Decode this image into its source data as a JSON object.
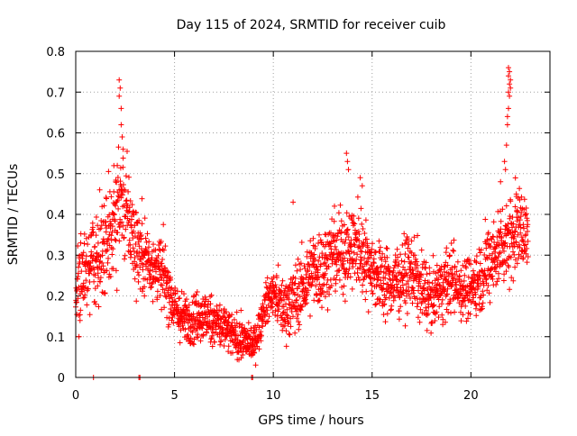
{
  "chart_data": {
    "type": "scatter",
    "title": "Day 115 of 2024, SRMTID for receiver cuib",
    "xlabel": "GPS time / hours",
    "ylabel": "SRMTID / TECUs",
    "xlim": [
      0,
      24
    ],
    "ylim": [
      0,
      0.8
    ],
    "xticks": [
      0,
      5,
      10,
      15,
      20
    ],
    "yticks": [
      0,
      0.1,
      0.2,
      0.3,
      0.4,
      0.5,
      0.6,
      0.7,
      0.8
    ],
    "xtick_labels": [
      "0",
      "5",
      "10",
      "15",
      "20"
    ],
    "ytick_labels": [
      "0",
      "0.1",
      "0.2",
      "0.3",
      "0.4",
      "0.5",
      "0.6",
      "0.7",
      "0.8"
    ],
    "grid": true,
    "marker": "+",
    "marker_color": "#ff0000",
    "trend": {
      "x": [
        0,
        0.5,
        1.0,
        1.5,
        2.0,
        2.3,
        2.6,
        3.0,
        3.5,
        4.0,
        4.5,
        5.0,
        5.5,
        6.0,
        6.5,
        7.0,
        7.5,
        8.0,
        8.5,
        9.0,
        9.3,
        9.6,
        10.0,
        10.5,
        11.0,
        11.5,
        12.0,
        12.5,
        13.0,
        13.5,
        14.0,
        14.5,
        15.0,
        15.5,
        16.0,
        16.5,
        17.0,
        17.5,
        18.0,
        18.5,
        19.0,
        19.5,
        20.0,
        20.5,
        21.0,
        21.5,
        22.0,
        22.5,
        22.9
      ],
      "y": [
        0.22,
        0.25,
        0.3,
        0.32,
        0.4,
        0.44,
        0.4,
        0.33,
        0.3,
        0.27,
        0.25,
        0.17,
        0.14,
        0.15,
        0.15,
        0.14,
        0.12,
        0.1,
        0.09,
        0.08,
        0.12,
        0.18,
        0.21,
        0.17,
        0.19,
        0.22,
        0.26,
        0.27,
        0.3,
        0.31,
        0.32,
        0.31,
        0.27,
        0.24,
        0.23,
        0.25,
        0.26,
        0.22,
        0.19,
        0.22,
        0.24,
        0.22,
        0.22,
        0.25,
        0.29,
        0.32,
        0.35,
        0.37,
        0.34
      ],
      "spread": [
        0.08,
        0.09,
        0.1,
        0.1,
        0.11,
        0.12,
        0.1,
        0.09,
        0.08,
        0.07,
        0.07,
        0.05,
        0.05,
        0.05,
        0.05,
        0.05,
        0.05,
        0.04,
        0.04,
        0.03,
        0.04,
        0.04,
        0.04,
        0.06,
        0.07,
        0.07,
        0.08,
        0.08,
        0.08,
        0.09,
        0.09,
        0.08,
        0.07,
        0.07,
        0.07,
        0.07,
        0.07,
        0.07,
        0.06,
        0.06,
        0.07,
        0.06,
        0.06,
        0.07,
        0.08,
        0.08,
        0.09,
        0.08,
        0.07
      ]
    },
    "peaks": [
      {
        "x": 2.2,
        "y": 0.73
      },
      {
        "x": 2.25,
        "y": 0.71
      },
      {
        "x": 2.2,
        "y": 0.69
      },
      {
        "x": 2.3,
        "y": 0.66
      },
      {
        "x": 2.3,
        "y": 0.62
      },
      {
        "x": 2.35,
        "y": 0.59
      },
      {
        "x": 2.4,
        "y": 0.56
      },
      {
        "x": 13.7,
        "y": 0.55
      },
      {
        "x": 13.75,
        "y": 0.53
      },
      {
        "x": 13.8,
        "y": 0.51
      },
      {
        "x": 14.4,
        "y": 0.49
      },
      {
        "x": 14.5,
        "y": 0.47
      },
      {
        "x": 11.0,
        "y": 0.43
      },
      {
        "x": 21.9,
        "y": 0.76
      },
      {
        "x": 21.95,
        "y": 0.75
      },
      {
        "x": 21.9,
        "y": 0.74
      },
      {
        "x": 22.0,
        "y": 0.73
      },
      {
        "x": 21.95,
        "y": 0.72
      },
      {
        "x": 22.0,
        "y": 0.71
      },
      {
        "x": 21.9,
        "y": 0.7
      },
      {
        "x": 21.95,
        "y": 0.69
      },
      {
        "x": 21.9,
        "y": 0.66
      },
      {
        "x": 21.85,
        "y": 0.64
      },
      {
        "x": 21.85,
        "y": 0.62
      },
      {
        "x": 21.8,
        "y": 0.57
      },
      {
        "x": 21.7,
        "y": 0.53
      },
      {
        "x": 21.75,
        "y": 0.51
      },
      {
        "x": 21.5,
        "y": 0.48
      },
      {
        "x": 22.3,
        "y": 0.45
      },
      {
        "x": 0.9,
        "y": 0.0
      },
      {
        "x": 3.2,
        "y": 0.0
      },
      {
        "x": 3.25,
        "y": 0.0
      },
      {
        "x": 8.9,
        "y": 0.0
      },
      {
        "x": 8.95,
        "y": 0.0
      }
    ]
  }
}
